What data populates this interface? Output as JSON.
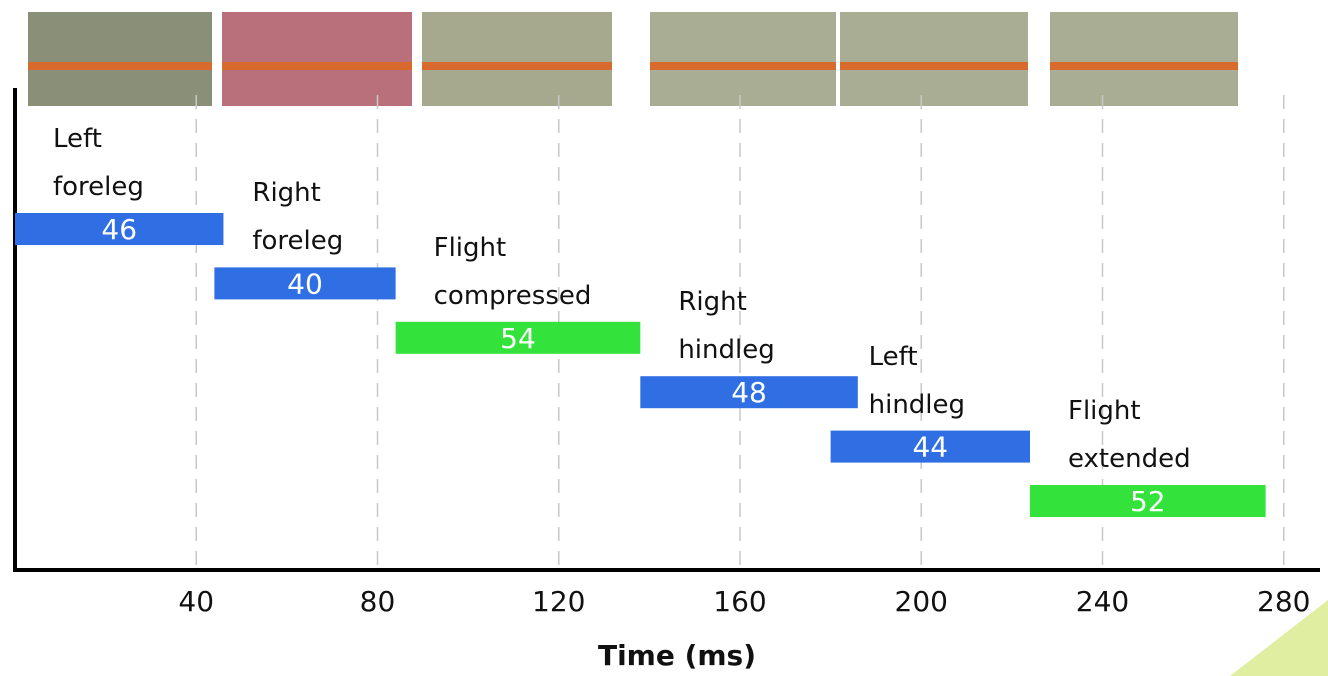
{
  "chart_data": {
    "type": "gantt",
    "xlabel": "Time (ms)",
    "categories": [
      "Left foreleg",
      "Right foreleg",
      "Flight compressed",
      "Right hindleg",
      "Left hindleg",
      "Flight extended"
    ],
    "starts": [
      0,
      44,
      84,
      138,
      180,
      224
    ],
    "values": [
      46,
      40,
      54,
      48,
      44,
      52
    ],
    "colors": [
      "#2f6fe3",
      "#2f6fe3",
      "#33e23a",
      "#2f6fe3",
      "#2f6fe3",
      "#33e23a"
    ],
    "xlim": [
      0,
      288
    ],
    "xticks": [
      40,
      80,
      120,
      160,
      200,
      240,
      280
    ],
    "grid": true
  }
}
